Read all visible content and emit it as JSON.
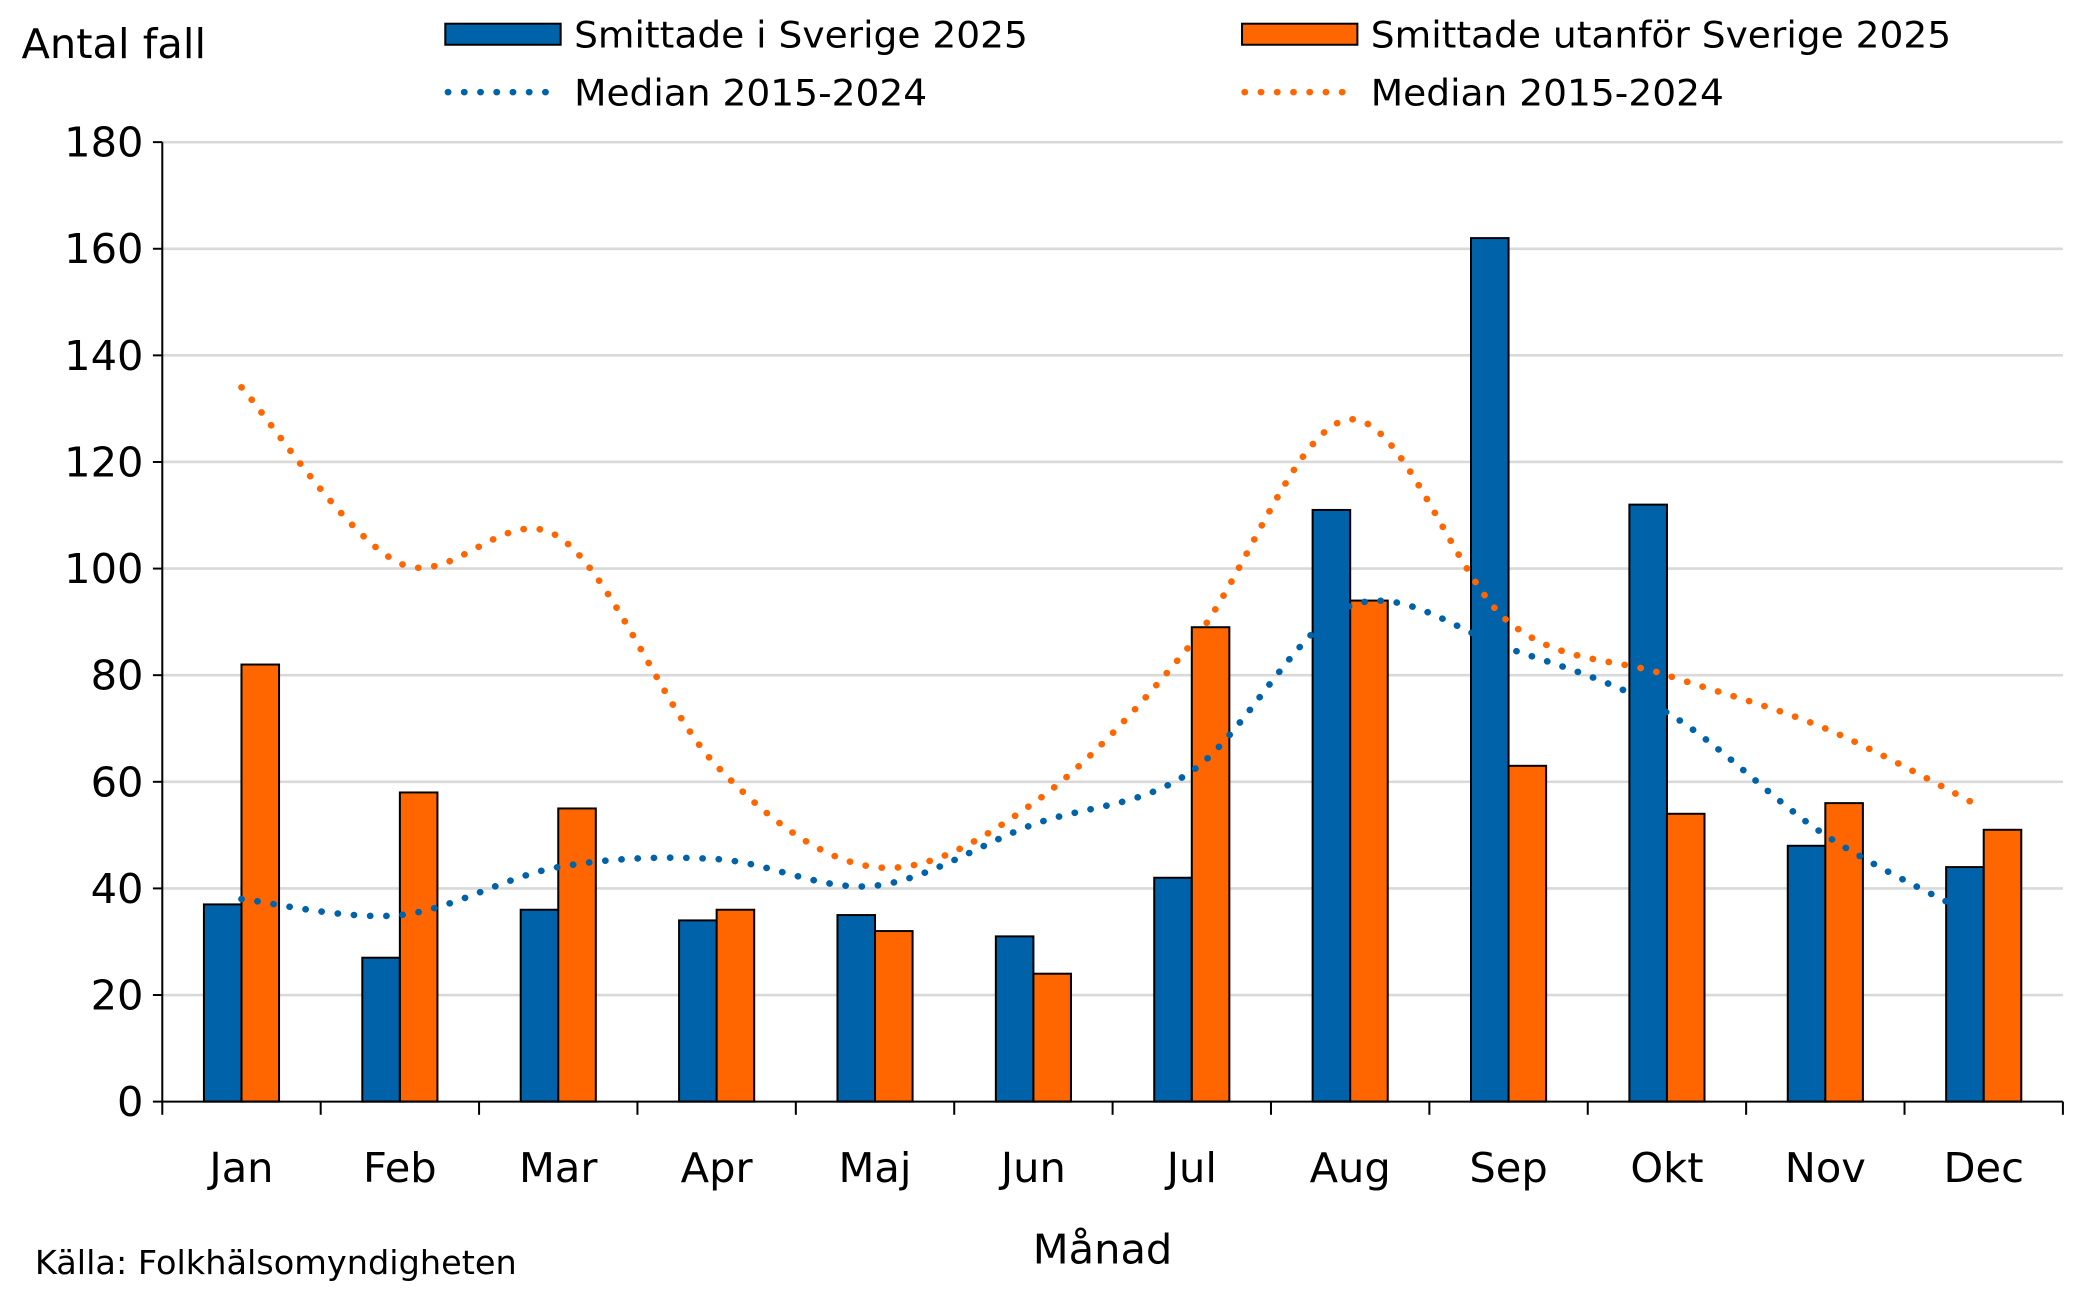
{
  "chart_data": {
    "type": "bar",
    "ylabel": "Antal fall",
    "xlabel": "Månad",
    "source": "Källa: Folkhälsomyndigheten",
    "ylim": [
      0,
      180
    ],
    "yticks": [
      0,
      20,
      40,
      60,
      80,
      100,
      120,
      140,
      160,
      180
    ],
    "grid": true,
    "legend_position": "top",
    "categories": [
      "Jan",
      "Feb",
      "Mar",
      "Apr",
      "Maj",
      "Jun",
      "Jul",
      "Aug",
      "Sep",
      "Okt",
      "Nov",
      "Dec"
    ],
    "series": [
      {
        "name": "Smittade i Sverige 2025",
        "kind": "bar",
        "color": "#0063AA",
        "values": [
          37,
          27,
          36,
          34,
          35,
          31,
          42,
          111,
          162,
          112,
          48,
          44
        ]
      },
      {
        "name": "Smittade utanför Sverige 2025",
        "kind": "bar",
        "color": "#FF6600",
        "values": [
          82,
          58,
          55,
          36,
          32,
          24,
          89,
          94,
          63,
          54,
          56,
          51
        ]
      },
      {
        "name": "Median 2015-2024",
        "kind": "dotted-line",
        "color": "#0063AA",
        "values": [
          38,
          35,
          44,
          45.5,
          40.5,
          52,
          62,
          93,
          85,
          73,
          50,
          34
        ]
      },
      {
        "name": "Median 2015-2024",
        "kind": "dotted-line",
        "color": "#FF6600",
        "values": [
          134,
          101,
          106,
          63,
          44,
          56,
          86,
          128,
          90,
          80,
          70,
          55
        ]
      }
    ]
  }
}
